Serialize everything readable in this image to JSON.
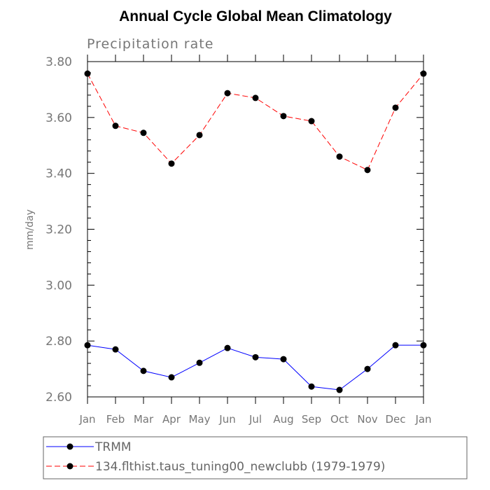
{
  "chart_data": {
    "type": "line",
    "title": "Annual Cycle Global Mean Climatology",
    "subtitle": "Precipitation rate",
    "ylabel": "mm/day",
    "xlabel": "",
    "categories": [
      "Jan",
      "Feb",
      "Mar",
      "Apr",
      "May",
      "Jun",
      "Jul",
      "Aug",
      "Sep",
      "Oct",
      "Nov",
      "Dec",
      "Jan"
    ],
    "ylim": [
      2.6,
      3.8
    ],
    "yticks": [
      "2.60",
      "2.80",
      "3.00",
      "3.20",
      "3.40",
      "3.60",
      "3.80"
    ],
    "series": [
      {
        "name": "TRMM",
        "color": "#0000ff",
        "line_style": "solid",
        "values": [
          2.785,
          2.77,
          2.693,
          2.67,
          2.722,
          2.775,
          2.742,
          2.735,
          2.637,
          2.625,
          2.7,
          2.785,
          2.785
        ]
      },
      {
        "name": "134.flthist.taus_tuning00_newclubb (1979-1979)",
        "color": "#ff0000",
        "line_style": "dashed",
        "values": [
          3.757,
          3.57,
          3.545,
          3.435,
          3.537,
          3.687,
          3.67,
          3.605,
          3.587,
          3.46,
          3.412,
          3.635,
          3.757
        ]
      }
    ],
    "legend_position": "bottom"
  }
}
